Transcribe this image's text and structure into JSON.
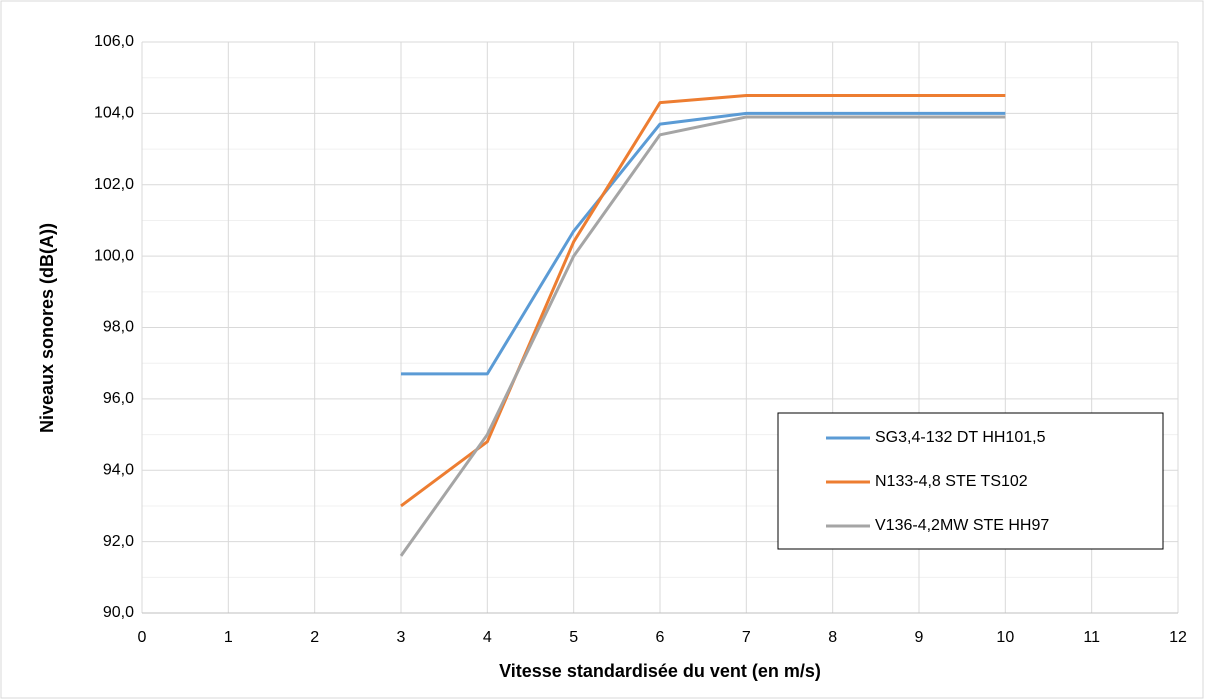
{
  "chart_data": {
    "type": "line",
    "xlabel": "Vitesse standardisée du vent (en m/s)",
    "ylabel": "Niveaux sonores (dB(A))",
    "x": [
      3,
      4,
      5,
      6,
      7,
      10
    ],
    "series": [
      {
        "name": "SG3,4-132 DT HH101,5",
        "color": "#5b9bd5",
        "values": [
          96.7,
          96.7,
          100.7,
          103.7,
          104.0,
          104.0
        ]
      },
      {
        "name": "N133-4,8 STE TS102",
        "color": "#ed7d31",
        "values": [
          93.0,
          94.8,
          100.4,
          104.3,
          104.5,
          104.5
        ]
      },
      {
        "name": "V136-4,2MW STE HH97",
        "color": "#a5a5a5",
        "values": [
          91.6,
          95.0,
          100.0,
          103.4,
          103.9,
          103.9
        ]
      }
    ],
    "xlim": [
      0,
      12
    ],
    "xticks": [
      0,
      1,
      2,
      3,
      4,
      5,
      6,
      7,
      8,
      9,
      10,
      11,
      12
    ],
    "ylim": [
      90,
      106
    ],
    "yticks": [
      {
        "value": 90,
        "label": "90,0"
      },
      {
        "value": 92,
        "label": "92,0"
      },
      {
        "value": 94,
        "label": "94,0"
      },
      {
        "value": 96,
        "label": "96,0"
      },
      {
        "value": 98,
        "label": "98,0"
      },
      {
        "value": 100,
        "label": "100,0"
      },
      {
        "value": 102,
        "label": "102,0"
      },
      {
        "value": 104,
        "label": "104,0"
      },
      {
        "value": 106,
        "label": "106,0"
      }
    ],
    "yminorticks": [
      91,
      93,
      95,
      97,
      99,
      101,
      103,
      105
    ],
    "grid": true,
    "legend": "lower right"
  }
}
